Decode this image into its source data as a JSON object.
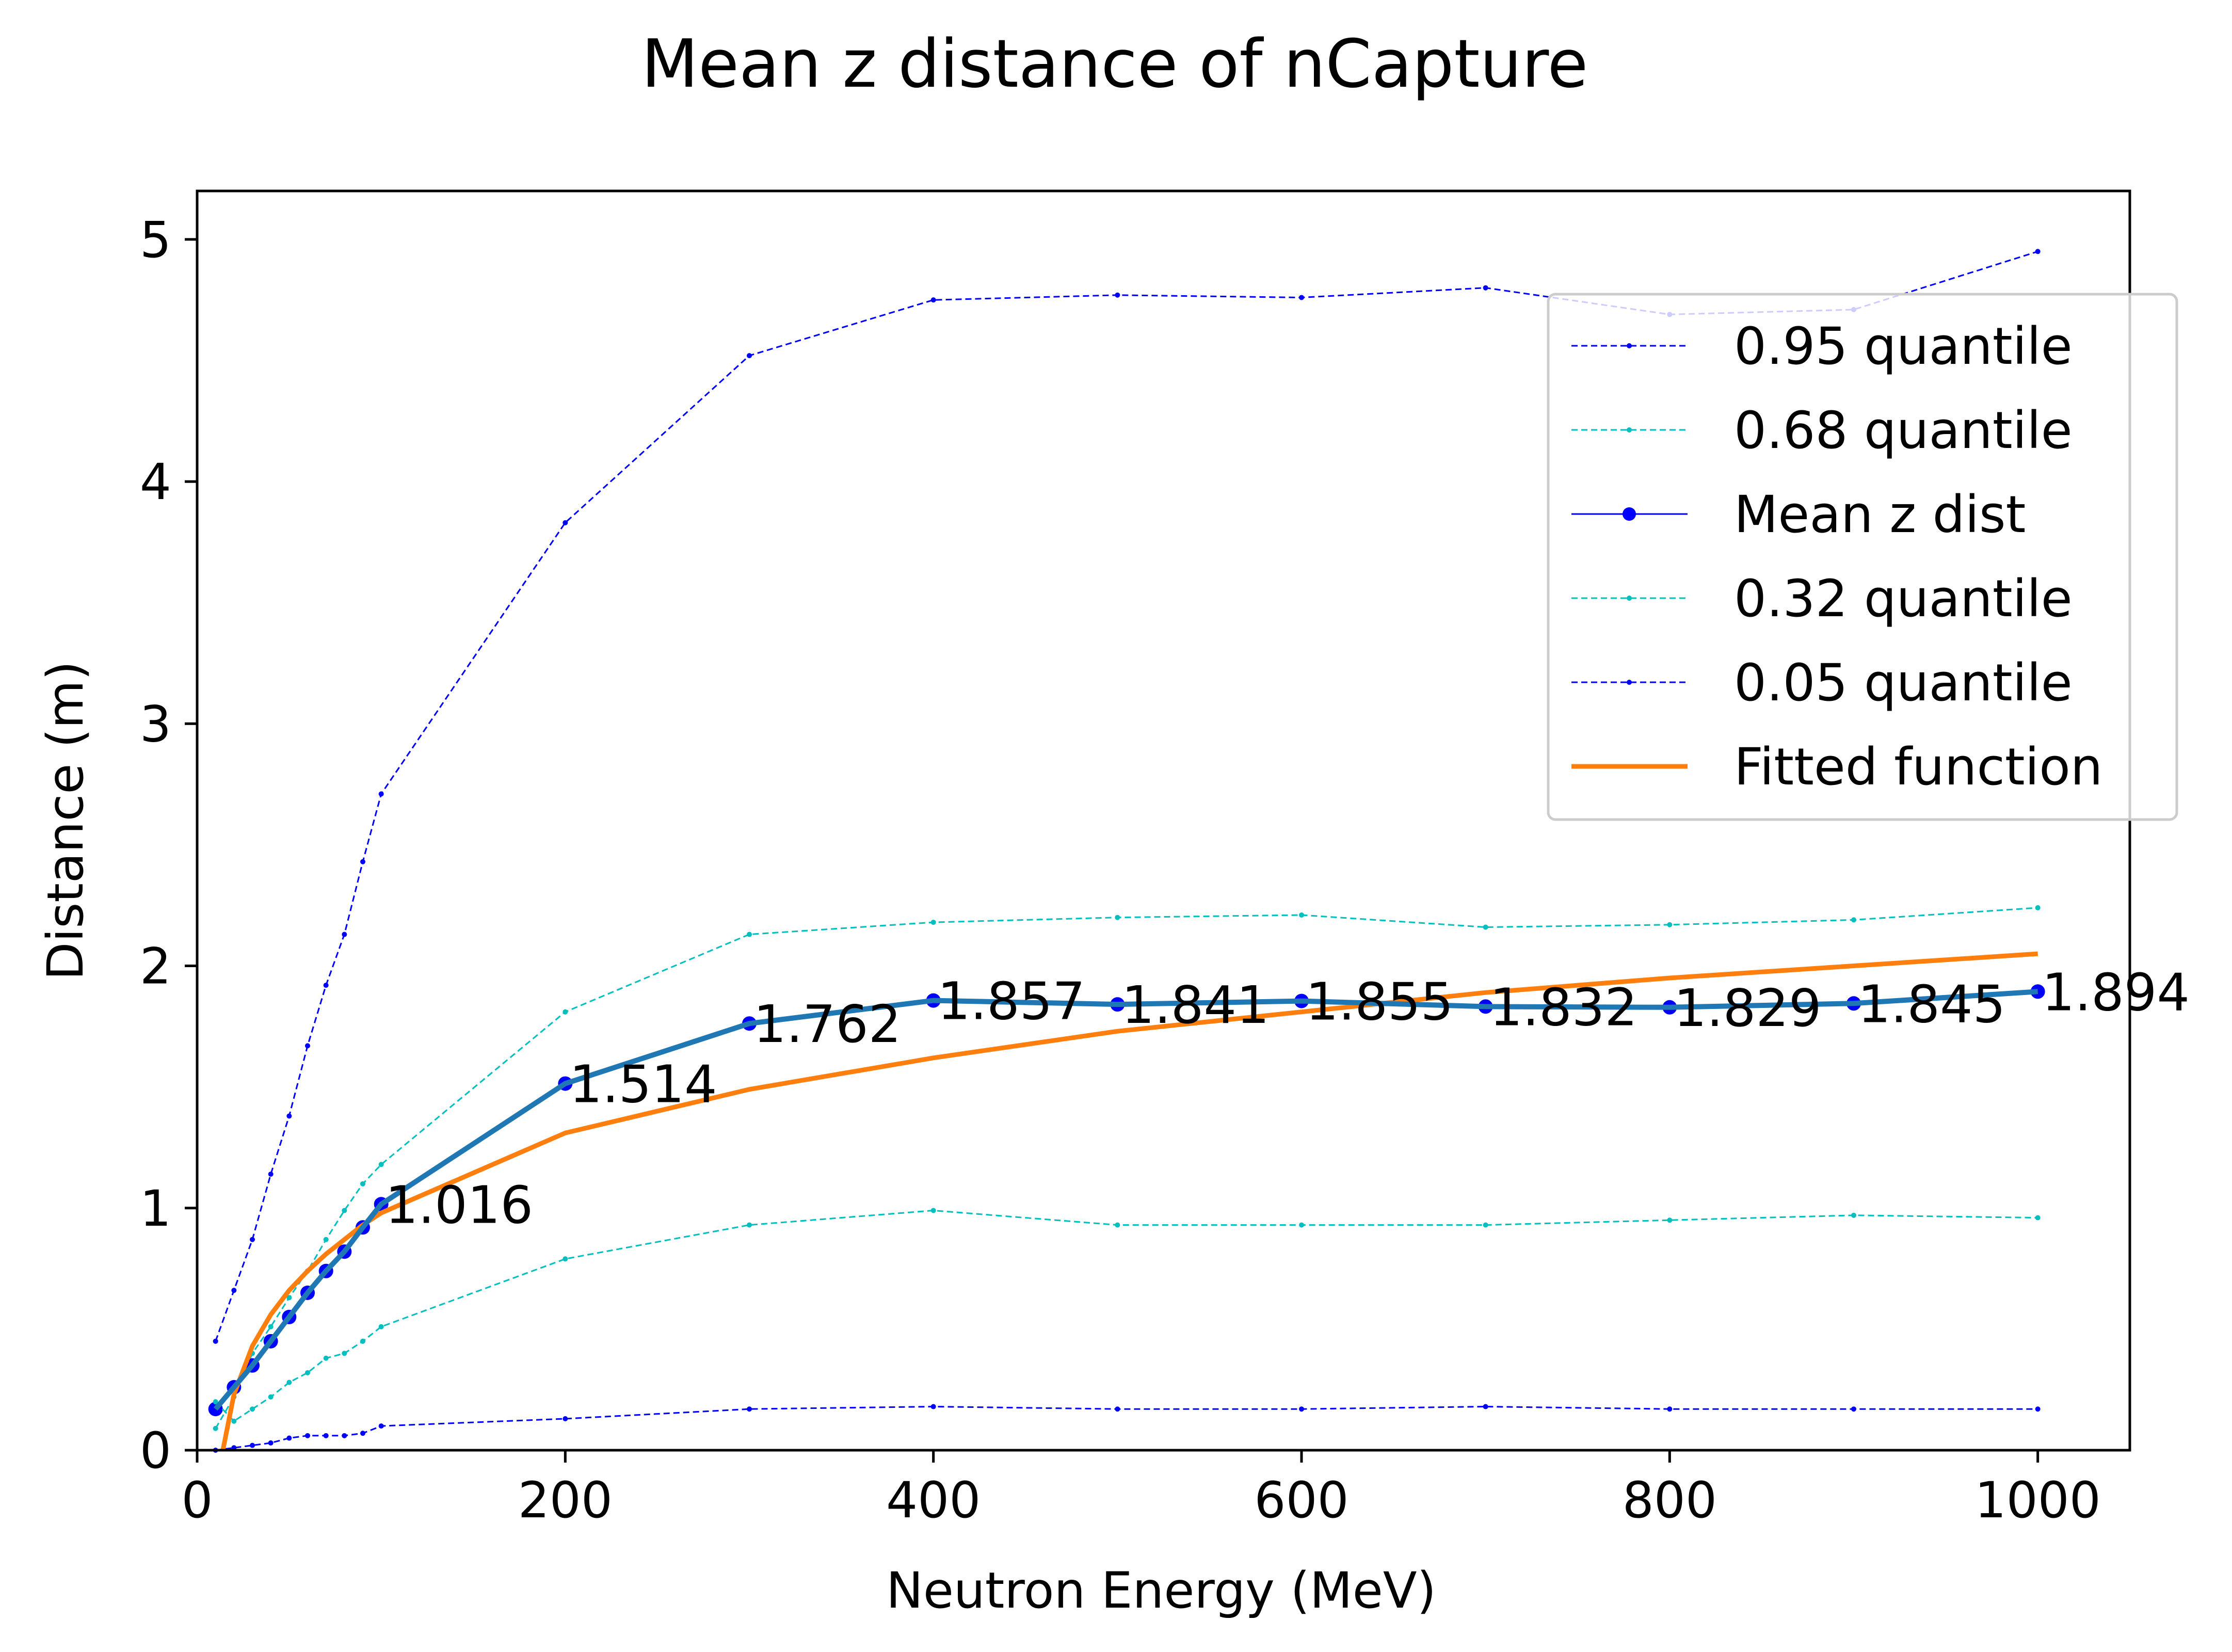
{
  "chart_data": {
    "type": "line",
    "title": "Mean z distance of nCapture",
    "xlabel": "Neutron Energy (MeV)",
    "ylabel": "Distance (m)",
    "xlim": [
      0,
      1050
    ],
    "ylim": [
      0,
      5.2
    ],
    "xticks": [
      "0",
      "200",
      "400",
      "600",
      "800",
      "1000"
    ],
    "yticks": [
      "0",
      "1",
      "2",
      "3",
      "4",
      "5"
    ],
    "grid": false,
    "legend_position": "upper right",
    "x": [
      10,
      20,
      30,
      40,
      50,
      60,
      70,
      80,
      90,
      100,
      200,
      300,
      400,
      500,
      600,
      700,
      800,
      900,
      1000
    ],
    "series": [
      {
        "name": "0.95 quantile",
        "color": "#0000ff",
        "style": "dashed",
        "values": [
          0.45,
          0.66,
          0.87,
          1.14,
          1.38,
          1.67,
          1.92,
          2.13,
          2.43,
          2.71,
          3.83,
          4.52,
          4.75,
          4.77,
          4.76,
          4.8,
          4.69,
          4.71,
          4.95
        ]
      },
      {
        "name": "0.68 quantile",
        "color": "#00bfbf",
        "style": "dashed",
        "values": [
          0.09,
          0.22,
          0.4,
          0.51,
          0.63,
          0.74,
          0.87,
          0.99,
          1.1,
          1.18,
          1.81,
          2.13,
          2.18,
          2.2,
          2.21,
          2.16,
          2.17,
          2.19,
          2.24
        ]
      },
      {
        "name": "Mean z dist",
        "color": "#0000ff",
        "style": "solid",
        "values": [
          0.17,
          0.26,
          0.35,
          0.45,
          0.55,
          0.65,
          0.74,
          0.82,
          0.92,
          1.016,
          1.514,
          1.762,
          1.857,
          1.841,
          1.855,
          1.832,
          1.829,
          1.845,
          1.894
        ]
      },
      {
        "name": "0.32 quantile",
        "color": "#00bfbf",
        "style": "dashed",
        "values": [
          0.2,
          0.12,
          0.17,
          0.22,
          0.28,
          0.32,
          0.38,
          0.4,
          0.45,
          0.51,
          0.79,
          0.93,
          0.99,
          0.93,
          0.93,
          0.93,
          0.95,
          0.97,
          0.96
        ]
      },
      {
        "name": "0.05 quantile",
        "color": "#0000ff",
        "style": "dashed",
        "values": [
          0.0,
          0.01,
          0.02,
          0.03,
          0.05,
          0.06,
          0.06,
          0.06,
          0.07,
          0.1,
          0.13,
          0.17,
          0.18,
          0.17,
          0.17,
          0.18,
          0.17,
          0.17,
          0.17
        ]
      },
      {
        "name": "Fitted function",
        "color": "#ff7f0e",
        "style": "solid",
        "x": [
          14,
          20,
          30,
          40,
          50,
          60,
          70,
          80,
          90,
          100,
          200,
          300,
          400,
          500,
          600,
          700,
          800,
          900,
          1000
        ],
        "values": [
          0.0,
          0.23,
          0.43,
          0.56,
          0.66,
          0.74,
          0.81,
          0.87,
          0.93,
          0.98,
          1.31,
          1.49,
          1.62,
          1.73,
          1.81,
          1.89,
          1.95,
          2.0,
          2.05
        ]
      }
    ],
    "mean_overlay": {
      "color": "#1f77b4",
      "x": [
        10,
        20,
        30,
        40,
        50,
        60,
        70,
        80,
        90,
        100,
        200,
        300,
        400,
        500,
        600,
        700,
        800,
        900,
        1000
      ],
      "values": [
        0.17,
        0.26,
        0.35,
        0.45,
        0.55,
        0.65,
        0.74,
        0.82,
        0.92,
        1.016,
        1.514,
        1.762,
        1.857,
        1.841,
        1.855,
        1.832,
        1.829,
        1.845,
        1.894
      ]
    },
    "annotations": [
      {
        "x": 100,
        "y": 1.016,
        "text": "1.016"
      },
      {
        "x": 200,
        "y": 1.514,
        "text": "1.514"
      },
      {
        "x": 300,
        "y": 1.762,
        "text": "1.762"
      },
      {
        "x": 400,
        "y": 1.857,
        "text": "1.857"
      },
      {
        "x": 500,
        "y": 1.841,
        "text": "1.841"
      },
      {
        "x": 600,
        "y": 1.855,
        "text": "1.855"
      },
      {
        "x": 700,
        "y": 1.832,
        "text": "1.832"
      },
      {
        "x": 800,
        "y": 1.829,
        "text": "1.829"
      },
      {
        "x": 900,
        "y": 1.845,
        "text": "1.845"
      },
      {
        "x": 1000,
        "y": 1.894,
        "text": "1.894"
      }
    ]
  }
}
